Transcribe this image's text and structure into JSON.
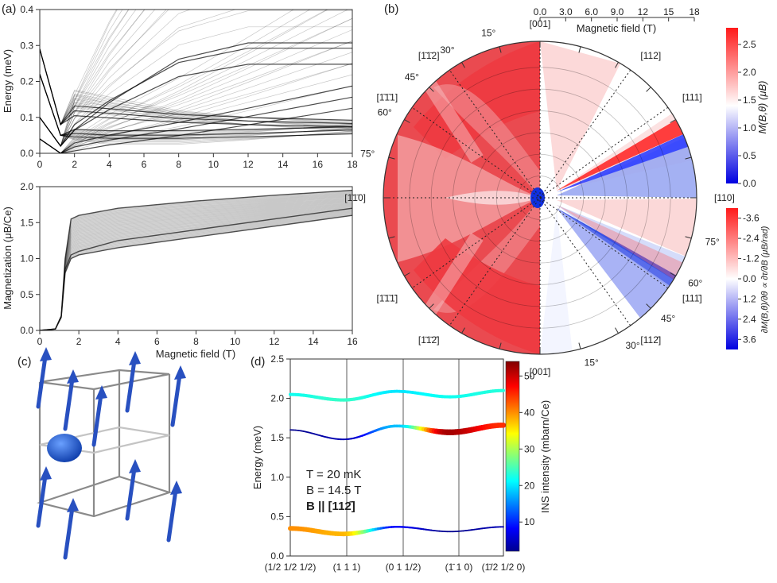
{
  "panels": {
    "a": "(a)",
    "b": "(b)",
    "c": "(c)",
    "d": "(d)"
  },
  "chart_data": [
    {
      "type": "line",
      "panel": "a-top",
      "xlabel": "",
      "ylabel": "Energy (meV)",
      "xlim": [
        0,
        18
      ],
      "ylim": [
        0,
        0.4
      ],
      "xticks": [
        0,
        2,
        4,
        6,
        8,
        10,
        12,
        14,
        16,
        18
      ],
      "yticks": [
        0.0,
        0.1,
        0.2,
        0.3,
        0.4
      ],
      "series": [
        {
          "x": [
            0,
            1.2,
            2,
            4,
            8,
            12,
            18
          ],
          "y": [
            0.04,
            0.0,
            0.02,
            0.07,
            0.15,
            0.24,
            0.38
          ]
        },
        {
          "x": [
            0,
            1.2,
            2,
            4,
            8,
            12,
            18
          ],
          "y": [
            0.1,
            0.02,
            0.08,
            0.18,
            0.34,
            0.4,
            0.4
          ]
        },
        {
          "x": [
            0,
            1.2,
            2,
            4,
            8,
            12,
            18
          ],
          "y": [
            0.22,
            0.05,
            0.04,
            0.03,
            0.03,
            0.04,
            0.06
          ]
        },
        {
          "x": [
            0,
            1.2,
            2,
            4,
            8,
            12,
            18
          ],
          "y": [
            0.29,
            0.08,
            0.12,
            0.11,
            0.09,
            0.08,
            0.07
          ]
        }
      ]
    },
    {
      "type": "line",
      "panel": "a-bottom",
      "xlabel": "Magnetic field (T)",
      "ylabel": "Magnetization (μB/Ce)",
      "xlim": [
        0,
        16
      ],
      "ylim": [
        0,
        2.0
      ],
      "xticks": [
        0,
        2,
        4,
        6,
        8,
        10,
        12,
        14,
        16
      ],
      "yticks": [
        0.0,
        0.5,
        1.0,
        1.5,
        2.0
      ],
      "series": [
        {
          "x": [
            0,
            0.8,
            1.1,
            1.3,
            1.6,
            2,
            4,
            8,
            12,
            16
          ],
          "y": [
            0,
            0.02,
            0.2,
            1.0,
            1.55,
            1.6,
            1.7,
            1.8,
            1.88,
            1.95
          ]
        },
        {
          "x": [
            0,
            0.8,
            1.1,
            1.3,
            1.6,
            2,
            4,
            8,
            12,
            16
          ],
          "y": [
            0,
            0.02,
            0.2,
            0.85,
            1.05,
            1.1,
            1.25,
            1.4,
            1.55,
            1.7
          ]
        },
        {
          "x": [
            0,
            0.8,
            1.1,
            1.3,
            1.6,
            2,
            4,
            8,
            12,
            16
          ],
          "y": [
            0,
            0.02,
            0.18,
            0.8,
            1.0,
            1.05,
            1.15,
            1.3,
            1.45,
            1.6
          ]
        }
      ]
    },
    {
      "type": "heatmap",
      "panel": "b",
      "xlabel": "Magnetic field (T)",
      "radial_ticks": [
        "0.0",
        "3.0",
        "6.0",
        "9.0",
        "12",
        "15",
        "18"
      ],
      "directions": [
        "[001]",
        "[112]",
        "[111]",
        "[110]",
        "[111̄]",
        "[112̄]",
        "[001̄]",
        "[1̄1̄2̄]",
        "[1̄1̄1̄]",
        "[1̄1̄0]",
        "[1̄1̄1]",
        "[1̄1̄2]"
      ],
      "angles": [
        "15°",
        "30°",
        "45°",
        "60°",
        "75°",
        "75°",
        "60°",
        "45°",
        "30°",
        "15°"
      ],
      "colorbar_top": {
        "label": "M(B,θ) (μB)",
        "ticks": [
          "0.0",
          "0.5",
          "1.0",
          "1.5",
          "2.0",
          "2.5"
        ],
        "range": [
          0,
          2.8
        ]
      },
      "colorbar_bottom": {
        "label": "∂M(B,θ)/∂θ ∝ ∂τ/∂B (μB/rad)",
        "ticks": [
          "-3.6",
          "-2.4",
          "-1.2",
          "0.0",
          "1.2",
          "2.4",
          "3.6"
        ],
        "range": [
          -4.2,
          4.2
        ]
      },
      "colors": {
        "left_outer": "#e8434a",
        "left_inner": "#f4a0a2",
        "white": "#ffffff",
        "blue": "#1030e0",
        "red": "#ff1a1a"
      }
    },
    {
      "type": "line",
      "panel": "d",
      "ylabel": "Energy (meV)",
      "ylim": [
        0,
        2.5
      ],
      "yticks": [
        0.0,
        0.5,
        1.0,
        1.5,
        2.0,
        2.5
      ],
      "categories": [
        "(1/2 1/2 1/2)",
        "(1 1 1)",
        "(0 1 1/2)",
        "(1̄ 1 0)",
        "(1̄/2 1/2 0)"
      ],
      "annotation": {
        "T": "T = 20 mK",
        "B": "B = 14.5 T",
        "dir": "B || [112̄]"
      },
      "colorbar": {
        "label": "INS intensity (mbarn/Ce)",
        "ticks": [
          "10",
          "20",
          "30",
          "40",
          "50"
        ],
        "range": [
          2,
          54
        ]
      },
      "series": [
        {
          "y": [
            2.05,
            1.98,
            2.09,
            2.02,
            2.1
          ],
          "intensity": [
            22,
            24,
            20,
            22,
            23
          ]
        },
        {
          "y": [
            1.6,
            1.48,
            1.65,
            1.57,
            1.66
          ],
          "intensity": [
            2,
            4,
            18,
            52,
            45
          ]
        },
        {
          "y": [
            0.35,
            0.28,
            0.37,
            0.31,
            0.37
          ],
          "intensity": [
            40,
            38,
            8,
            2,
            4
          ]
        }
      ]
    }
  ],
  "panel_c": {
    "colors": {
      "arrow": "#2850c0",
      "cube": "#8a8a8a",
      "blob": "#1656d8"
    }
  }
}
